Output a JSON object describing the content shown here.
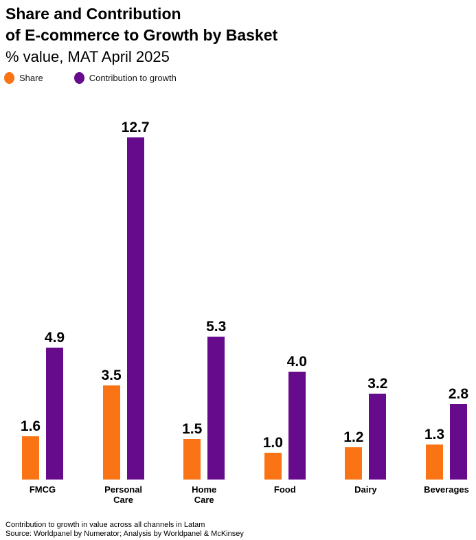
{
  "header": {
    "title_lines": [
      "Share and Contribution",
      "of E-commerce to Growth by Basket"
    ],
    "subtitle": "% value, MAT April 2025"
  },
  "legend": [
    {
      "label": "Share",
      "color": "#FA7314"
    },
    {
      "label": "Contribution to growth",
      "color": "#670B8D"
    }
  ],
  "chart_data": {
    "type": "bar",
    "title": "Share and Contribution of E-commerce to Growth by Basket",
    "subtitle": "% value, MAT April 2025",
    "categories": [
      "FMCG",
      "Personal\nCare",
      "Home\nCare",
      "Food",
      "Dairy",
      "Beverages"
    ],
    "series": [
      {
        "name": "Share",
        "color": "#FA7314",
        "values": [
          1.6,
          3.5,
          1.5,
          1.0,
          1.2,
          1.3
        ]
      },
      {
        "name": "Contribution to growth",
        "color": "#670B8D",
        "values": [
          4.9,
          12.7,
          5.3,
          4.0,
          3.2,
          2.8
        ]
      }
    ],
    "value_label_decimals": 1,
    "ylim": [
      0,
      12.7
    ],
    "grid": false,
    "axes_shown": false,
    "legend_position": "top-left",
    "bar_value_labels": "above-bars"
  },
  "footer": {
    "note": "Contribution to growth in value across all channels in Latam",
    "source": "Source: Worldpanel by Numerator; Analysis by Worldpanel & McKinsey"
  }
}
